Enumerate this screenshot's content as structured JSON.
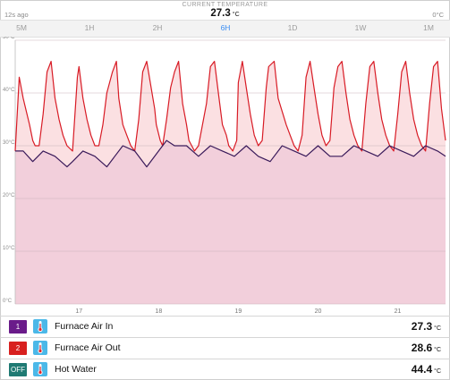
{
  "header": {
    "label": "CURRENT TEMPERATURE",
    "age": "12s ago",
    "value": "27.3",
    "unit": "°C",
    "right_unit": "0°C"
  },
  "tabs": [
    {
      "label": "5M",
      "active": false
    },
    {
      "label": "1H",
      "active": false
    },
    {
      "label": "2H",
      "active": false
    },
    {
      "label": "6H",
      "active": true
    },
    {
      "label": "1D",
      "active": false
    },
    {
      "label": "1W",
      "active": false
    },
    {
      "label": "1M",
      "active": false
    }
  ],
  "chart_data": {
    "type": "area",
    "y_ticks": [
      "0°C",
      "10°C",
      "20°C",
      "30°C",
      "40°C",
      "50°C"
    ],
    "ylim": [
      0,
      50
    ],
    "x_ticks": [
      "17",
      "18",
      "19",
      "20",
      "21"
    ],
    "xlim": [
      16.2,
      21.6
    ],
    "series": [
      {
        "id": "furnace_out",
        "color": "#d81b25",
        "fill": "#fbe0e2",
        "x": [
          16.2,
          16.25,
          16.3,
          16.38,
          16.42,
          16.45,
          16.5,
          16.55,
          16.6,
          16.65,
          16.7,
          16.75,
          16.8,
          16.85,
          16.92,
          16.98,
          17.0,
          17.05,
          17.1,
          17.15,
          17.2,
          17.25,
          17.3,
          17.35,
          17.42,
          17.47,
          17.5,
          17.55,
          17.6,
          17.65,
          17.7,
          17.75,
          17.8,
          17.85,
          17.95,
          17.97,
          18.02,
          18.05,
          18.1,
          18.15,
          18.2,
          18.25,
          18.3,
          18.35,
          18.38,
          18.45,
          18.5,
          18.6,
          18.65,
          18.7,
          18.75,
          18.8,
          18.85,
          18.88,
          18.93,
          18.98,
          19.0,
          19.05,
          19.1,
          19.15,
          19.2,
          19.25,
          19.3,
          19.35,
          19.38,
          19.45,
          19.5,
          19.6,
          19.65,
          19.7,
          19.75,
          19.8,
          19.85,
          19.9,
          19.95,
          20.0,
          20.05,
          20.1,
          20.15,
          20.2,
          20.25,
          20.3,
          20.35,
          20.4,
          20.45,
          20.5,
          20.55,
          20.6,
          20.65,
          20.7,
          20.75,
          20.8,
          20.85,
          20.9,
          20.95,
          21.0,
          21.05,
          21.1,
          21.15,
          21.2,
          21.25,
          21.3,
          21.35,
          21.4,
          21.45,
          21.5,
          21.55,
          21.6
        ],
        "y": [
          29,
          43,
          39,
          34,
          31,
          30,
          30,
          36,
          44,
          46,
          39,
          35,
          32,
          30,
          29,
          43,
          45,
          39,
          35,
          32,
          30,
          30,
          34,
          40,
          44,
          46,
          39,
          34,
          32,
          30,
          29,
          35,
          44,
          46,
          37,
          34,
          31,
          30,
          35,
          41,
          44,
          46,
          38,
          34,
          31,
          29,
          30,
          38,
          45,
          46,
          40,
          34,
          32,
          30,
          29,
          31,
          42,
          46,
          41,
          36,
          32,
          30,
          31,
          41,
          45,
          46,
          39,
          34,
          32,
          30,
          29,
          32,
          43,
          46,
          41,
          36,
          32,
          30,
          31,
          41,
          45,
          46,
          40,
          35,
          32,
          30,
          29,
          38,
          45,
          46,
          40,
          35,
          32,
          30,
          29,
          36,
          44,
          46,
          40,
          35,
          32,
          30,
          29,
          38,
          45,
          46,
          37,
          31
        ]
      },
      {
        "id": "furnace_in",
        "color": "#3a1a5a",
        "fill": "#f2cfdb",
        "x": [
          16.2,
          16.3,
          16.42,
          16.55,
          16.7,
          16.85,
          16.92,
          17.05,
          17.2,
          17.35,
          17.45,
          17.55,
          17.7,
          17.85,
          18.0,
          18.1,
          18.2,
          18.35,
          18.5,
          18.65,
          18.8,
          18.95,
          19.1,
          19.25,
          19.4,
          19.55,
          19.7,
          19.85,
          20.0,
          20.15,
          20.3,
          20.45,
          20.6,
          20.75,
          20.9,
          21.05,
          21.2,
          21.35,
          21.5,
          21.6
        ],
        "y": [
          29,
          29,
          27,
          29,
          28,
          26,
          27,
          29,
          28,
          26,
          28,
          30,
          29,
          26,
          29,
          31,
          30,
          30,
          28,
          30,
          29,
          28,
          30,
          28,
          27,
          30,
          29,
          28,
          30,
          28,
          28,
          30,
          29,
          28,
          30,
          29,
          28,
          30,
          29,
          28
        ]
      }
    ]
  },
  "sensors": [
    {
      "badge": "1",
      "badge_color": "#6a1b8a",
      "name": "Furnace Air In",
      "value": "27.3",
      "unit": "°C"
    },
    {
      "badge": "2",
      "badge_color": "#d8201f",
      "name": "Furnace Air Out",
      "value": "28.6",
      "unit": "°C"
    },
    {
      "badge": "OFF",
      "badge_color": "#1f7a73",
      "name": "Hot Water",
      "value": "44.4",
      "unit": "°C"
    }
  ],
  "icons": {
    "sensor_icon": "thermometer-icon"
  }
}
